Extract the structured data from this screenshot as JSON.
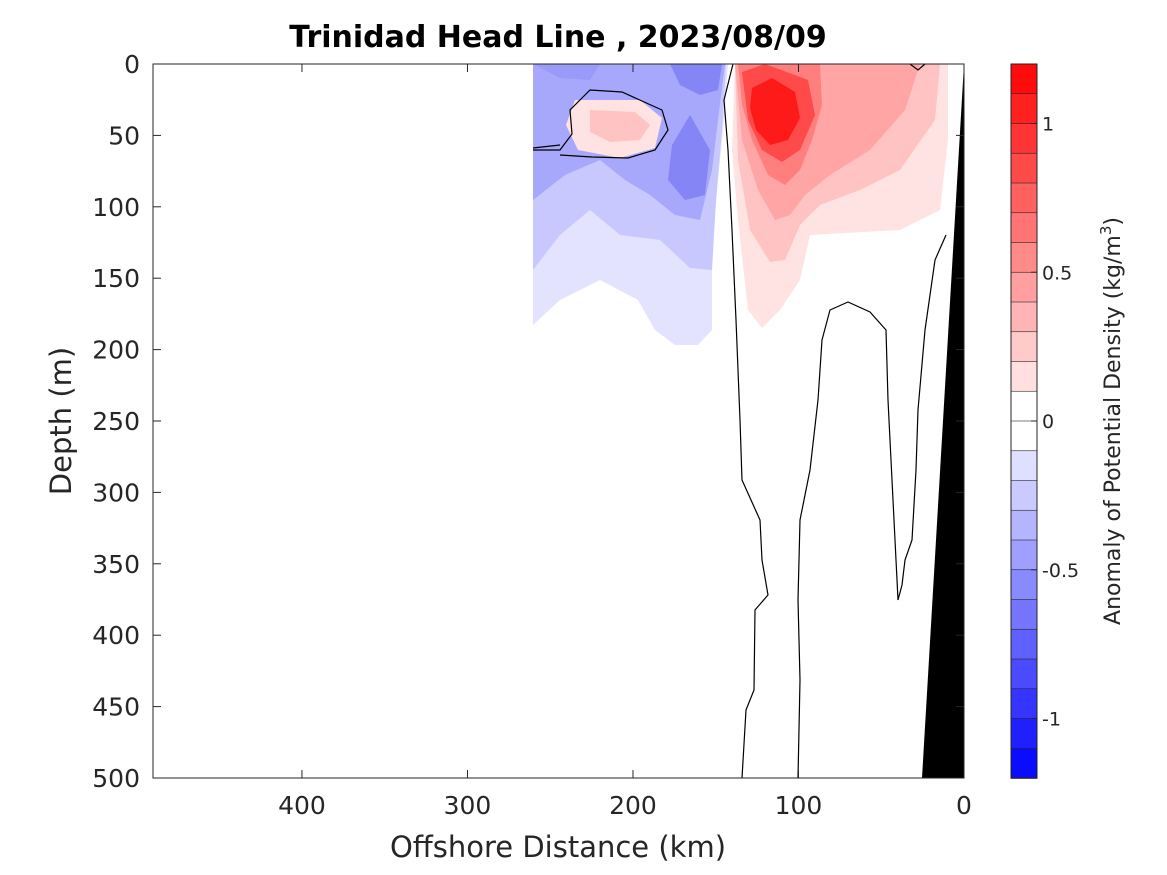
{
  "chart_data": {
    "type": "heatmap",
    "title": "Trinidad Head Line , 2023/08/09",
    "xlabel": "Offshore Distance (km)",
    "ylabel": "Depth (m)",
    "xlim": [
      490,
      0
    ],
    "ylim": [
      0,
      500
    ],
    "x_axis_reversed": true,
    "y_axis_reversed": true,
    "x_ticks": [
      400,
      300,
      200,
      100,
      0
    ],
    "x_tick_labels": [
      "400",
      "300",
      "200",
      "100",
      "0"
    ],
    "y_ticks": [
      0,
      50,
      100,
      150,
      200,
      250,
      300,
      350,
      400,
      450,
      500
    ],
    "y_tick_labels": [
      "0",
      "50",
      "100",
      "150",
      "200",
      "250",
      "300",
      "350",
      "400",
      "450",
      "500"
    ],
    "colorbar": {
      "label_text": "Anomaly of Potential Density (kg/m",
      "label_superscript": "3",
      "label_suffix": ")",
      "range": [
        -1.2,
        1.2
      ],
      "levels": 24,
      "ticks": [
        1,
        0.5,
        0,
        -0.5,
        -1
      ],
      "tick_labels": [
        "1",
        "0.5",
        "0",
        "-0.5",
        "-1"
      ],
      "negative_color": "#0000ff",
      "positive_color": "#ff0000",
      "zero_color": "#ffffff"
    },
    "anomaly_features": [
      {
        "kind": "positive",
        "center_km": 118,
        "center_depth_m": 35,
        "peak": 1.1
      },
      {
        "kind": "positive",
        "center_km": 80,
        "center_depth_m": 60,
        "peak": 0.45
      },
      {
        "kind": "positive",
        "center_km": 210,
        "center_depth_m": 40,
        "peak": 0.35
      },
      {
        "kind": "negative",
        "center_km": 165,
        "center_depth_m": 15,
        "peak": -0.6
      },
      {
        "kind": "negative",
        "center_km": 165,
        "center_depth_m": 85,
        "peak": -0.55
      },
      {
        "kind": "negative",
        "center_km": 245,
        "center_depth_m": 100,
        "peak": -0.45
      }
    ],
    "zero_contour_lines": 4,
    "bathymetry": {
      "color": "#000000",
      "shelf_edge_km": 0,
      "bottom_km_at_500m": 26
    },
    "grid": false
  }
}
